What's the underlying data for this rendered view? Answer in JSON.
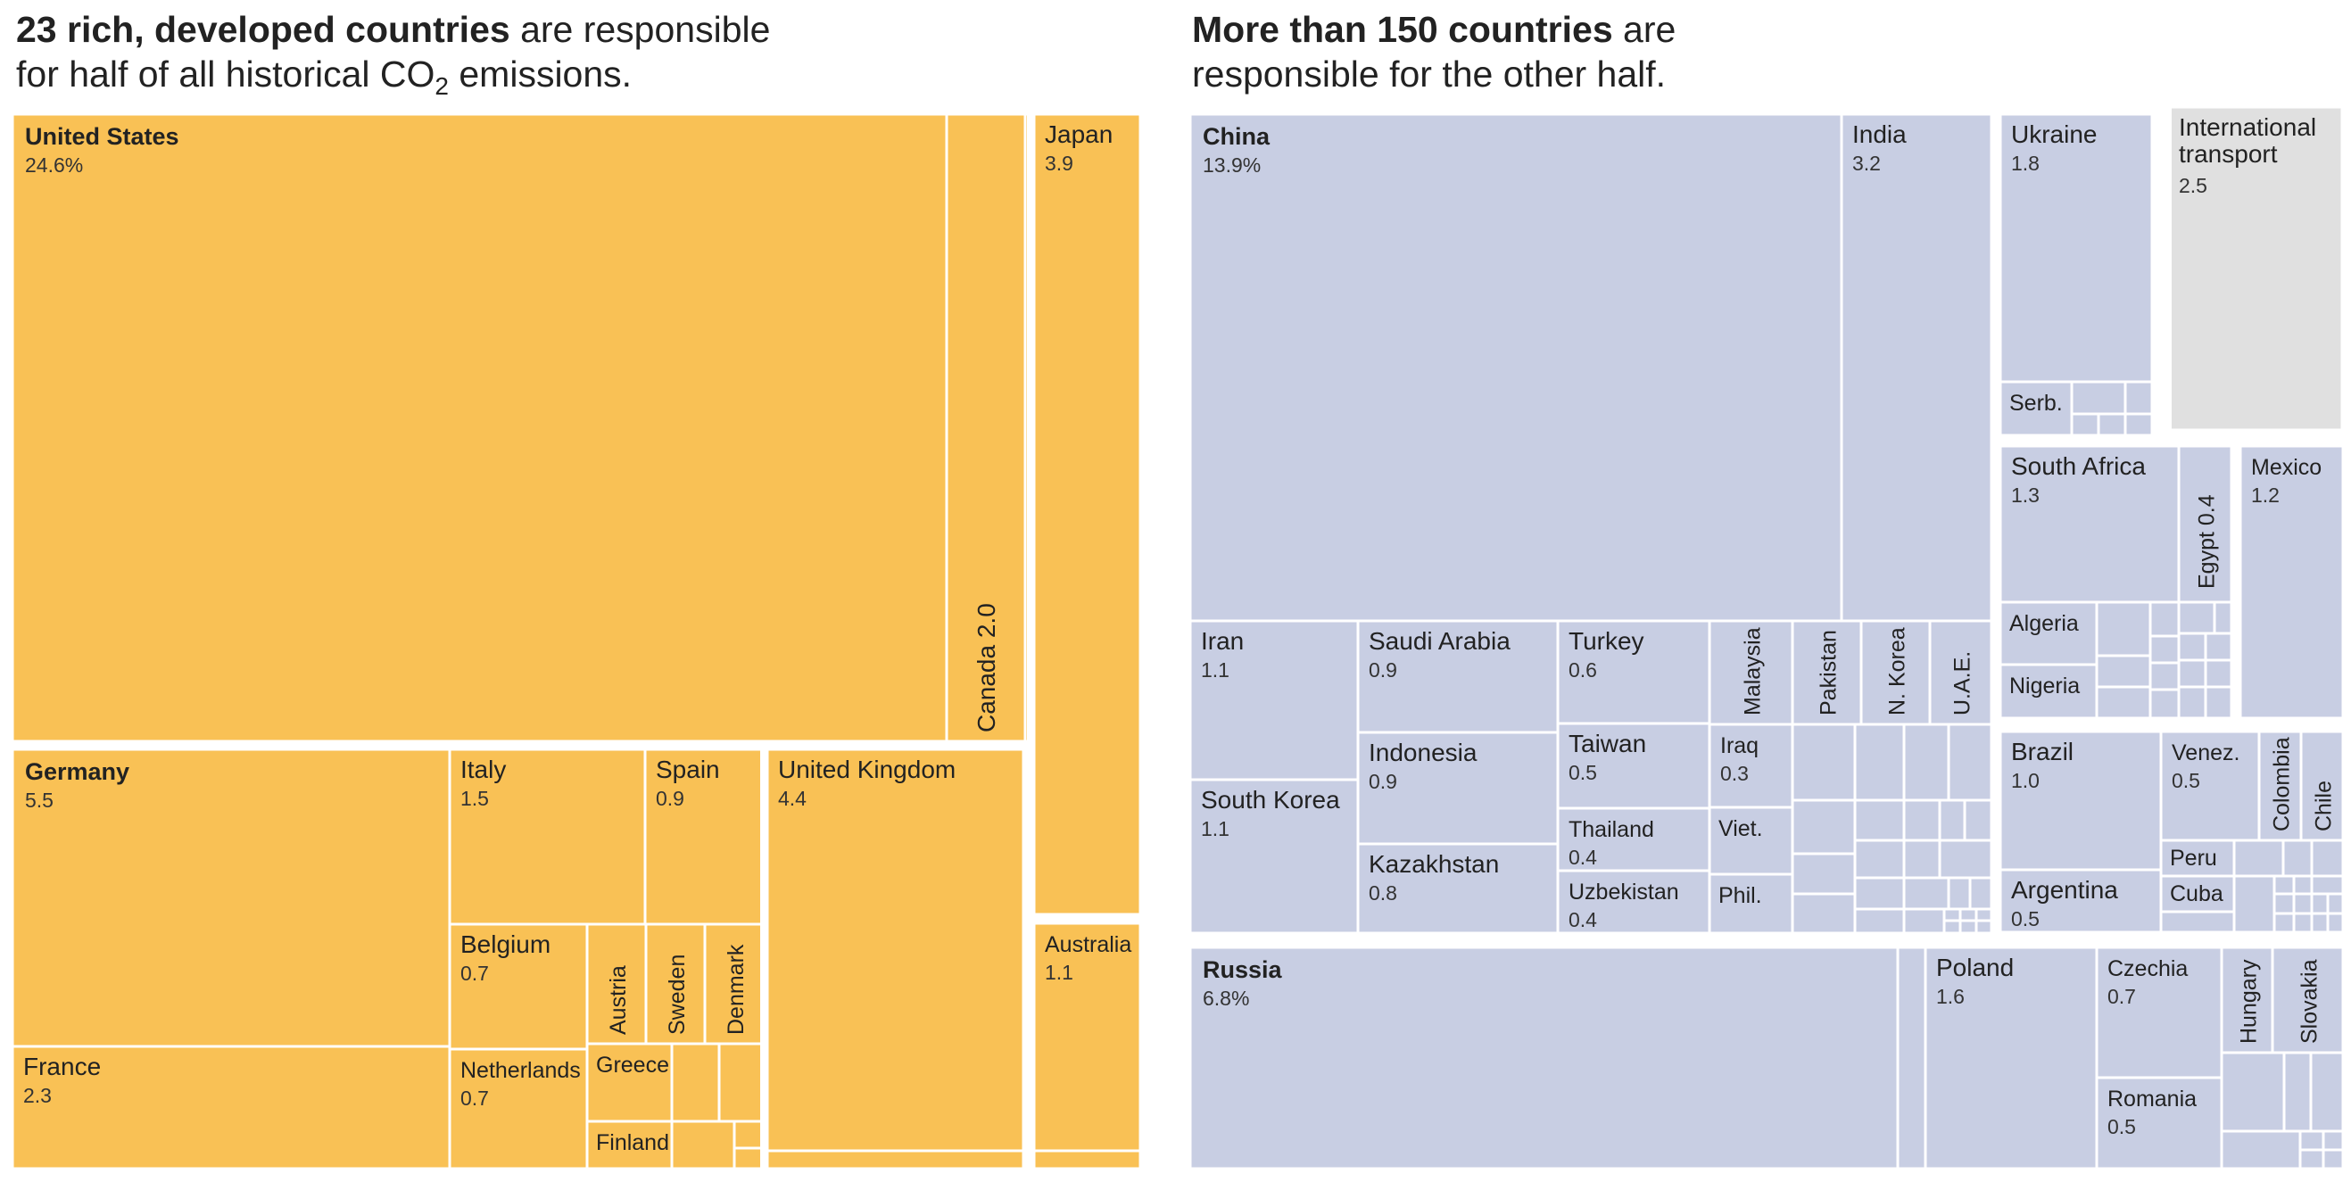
{
  "headline_left": {
    "bold": "23 rich, developed countries",
    "rest1": " are responsible",
    "line2a": "for half of all historical CO",
    "sub": "2",
    "line2b": " emissions."
  },
  "headline_right": {
    "bold": "More than 150 countries",
    "rest1": " are",
    "line2": "responsible for the other half."
  },
  "colors": {
    "developed": "#F9C155",
    "other": "#C8CEE3",
    "transport": "#E0E0E0",
    "border": "#FFFFFF"
  },
  "chart_data": {
    "type": "treemap",
    "unit": "% of historical CO2 emissions",
    "groups": [
      {
        "id": "developed",
        "items": [
          {
            "id": "united-states",
            "label": "United States",
            "value": 24.6,
            "value_label": "24.6%",
            "bold": true
          },
          {
            "id": "canada",
            "label": "Canada",
            "value": 2.0,
            "value_label": "2.0",
            "vertical": true
          },
          {
            "id": "japan",
            "label": "Japan",
            "value": 3.9,
            "value_label": "3.9"
          },
          {
            "id": "australia",
            "label": "Australia",
            "value": 1.1,
            "value_label": "1.1"
          },
          {
            "id": "germany",
            "label": "Germany",
            "value": 5.5,
            "value_label": "5.5",
            "bold": true
          },
          {
            "id": "france",
            "label": "France",
            "value": 2.3,
            "value_label": "2.3"
          },
          {
            "id": "italy",
            "label": "Italy",
            "value": 1.5,
            "value_label": "1.5"
          },
          {
            "id": "spain",
            "label": "Spain",
            "value": 0.9,
            "value_label": "0.9"
          },
          {
            "id": "belgium",
            "label": "Belgium",
            "value": 0.7,
            "value_label": "0.7"
          },
          {
            "id": "netherlands",
            "label": "Netherlands",
            "value": 0.7,
            "value_label": "0.7"
          },
          {
            "id": "austria",
            "label": "Austria",
            "vertical": true
          },
          {
            "id": "sweden",
            "label": "Sweden",
            "vertical": true
          },
          {
            "id": "denmark",
            "label": "Denmark",
            "vertical": true
          },
          {
            "id": "greece",
            "label": "Greece"
          },
          {
            "id": "finland",
            "label": "Finland"
          },
          {
            "id": "united-kingdom",
            "label": "United Kingdom",
            "value": 4.4,
            "value_label": "4.4"
          }
        ]
      },
      {
        "id": "other",
        "items": [
          {
            "id": "china",
            "label": "China",
            "value": 13.9,
            "value_label": "13.9%",
            "bold": true
          },
          {
            "id": "india",
            "label": "India",
            "value": 3.2,
            "value_label": "3.2"
          },
          {
            "id": "ukraine",
            "label": "Ukraine",
            "value": 1.8,
            "value_label": "1.8"
          },
          {
            "id": "serbia",
            "label": "Serb."
          },
          {
            "id": "international-transport",
            "label": "International transport",
            "value": 2.5,
            "value_label": "2.5"
          },
          {
            "id": "iran",
            "label": "Iran",
            "value": 1.1,
            "value_label": "1.1"
          },
          {
            "id": "south-korea",
            "label": "South Korea",
            "value": 1.1,
            "value_label": "1.1"
          },
          {
            "id": "saudi-arabia",
            "label": "Saudi Arabia",
            "value": 0.9,
            "value_label": "0.9"
          },
          {
            "id": "indonesia",
            "label": "Indonesia",
            "value": 0.9,
            "value_label": "0.9"
          },
          {
            "id": "kazakhstan",
            "label": "Kazakhstan",
            "value": 0.8,
            "value_label": "0.8"
          },
          {
            "id": "turkey",
            "label": "Turkey",
            "value": 0.6,
            "value_label": "0.6"
          },
          {
            "id": "taiwan",
            "label": "Taiwan",
            "value": 0.5,
            "value_label": "0.5"
          },
          {
            "id": "thailand",
            "label": "Thailand",
            "value": 0.4,
            "value_label": "0.4"
          },
          {
            "id": "uzbekistan",
            "label": "Uzbekistan",
            "value": 0.4,
            "value_label": "0.4"
          },
          {
            "id": "malaysia",
            "label": "Malaysia",
            "vertical": true
          },
          {
            "id": "pakistan",
            "label": "Pakistan",
            "vertical": true
          },
          {
            "id": "north-korea",
            "label": "N. Korea",
            "vertical": true
          },
          {
            "id": "uae",
            "label": "U.A.E.",
            "vertical": true
          },
          {
            "id": "iraq",
            "label": "Iraq",
            "value": 0.3,
            "value_label": "0.3"
          },
          {
            "id": "vietnam",
            "label": "Viet."
          },
          {
            "id": "philippines",
            "label": "Phil."
          },
          {
            "id": "south-africa",
            "label": "South Africa",
            "value": 1.3,
            "value_label": "1.3"
          },
          {
            "id": "egypt",
            "label": "Egypt",
            "value": 0.4,
            "value_label": "Egypt  0.4",
            "vertical": true
          },
          {
            "id": "algeria",
            "label": "Algeria"
          },
          {
            "id": "nigeria",
            "label": "Nigeria"
          },
          {
            "id": "mexico",
            "label": "Mexico",
            "value": 1.2,
            "value_label": "1.2"
          },
          {
            "id": "brazil",
            "label": "Brazil",
            "value": 1.0,
            "value_label": "1.0"
          },
          {
            "id": "argentina",
            "label": "Argentina",
            "value": 0.5,
            "value_label": "0.5"
          },
          {
            "id": "venezuela",
            "label": "Venez.",
            "value": 0.5,
            "value_label": "0.5"
          },
          {
            "id": "colombia",
            "label": "Colombia",
            "vertical": true
          },
          {
            "id": "chile",
            "label": "Chile",
            "vertical": true
          },
          {
            "id": "peru",
            "label": "Peru"
          },
          {
            "id": "cuba",
            "label": "Cuba"
          },
          {
            "id": "russia",
            "label": "Russia",
            "value": 6.8,
            "value_label": "6.8%",
            "bold": true
          },
          {
            "id": "poland",
            "label": "Poland",
            "value": 1.6,
            "value_label": "1.6"
          },
          {
            "id": "czechia",
            "label": "Czechia",
            "value": 0.7,
            "value_label": "0.7"
          },
          {
            "id": "romania",
            "label": "Romania",
            "value": 0.5,
            "value_label": "0.5"
          },
          {
            "id": "hungary",
            "label": "Hungary",
            "vertical": true
          },
          {
            "id": "slovakia",
            "label": "Slovakia",
            "vertical": true
          }
        ]
      }
    ]
  }
}
